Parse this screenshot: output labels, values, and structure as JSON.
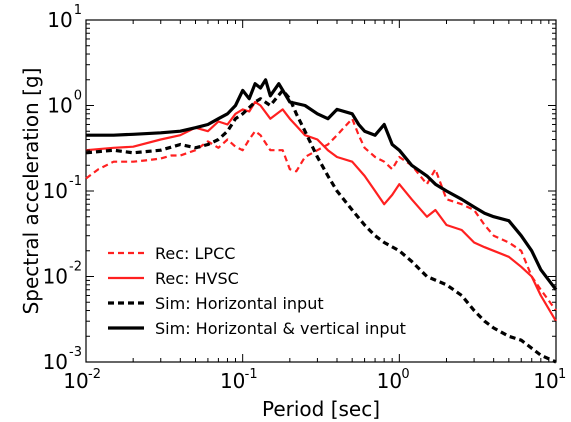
{
  "chart_data": {
    "type": "line",
    "xlabel": "Period [sec]",
    "ylabel": "Spectral acceleration [g]",
    "xscale": "log",
    "yscale": "log",
    "xlim": [
      0.01,
      10
    ],
    "ylim": [
      0.001,
      10
    ],
    "grid": false,
    "legend_position": "bottom-left",
    "x_ticks": [
      {
        "base": "10",
        "exp": "-2",
        "value": 0.01
      },
      {
        "base": "10",
        "exp": "-1",
        "value": 0.1
      },
      {
        "base": "10",
        "exp": "0",
        "value": 1
      },
      {
        "base": "10",
        "exp": "1",
        "value": 10
      }
    ],
    "y_ticks": [
      {
        "base": "10",
        "exp": "-3",
        "value": 0.001
      },
      {
        "base": "10",
        "exp": "-2",
        "value": 0.01
      },
      {
        "base": "10",
        "exp": "-1",
        "value": 0.1
      },
      {
        "base": "10",
        "exp": "0",
        "value": 1
      },
      {
        "base": "10",
        "exp": "1",
        "value": 10
      }
    ],
    "series": [
      {
        "name": "Rec: LPCC",
        "color": "#ff2020",
        "dash": "dashed",
        "width": 2.2,
        "points": [
          [
            0.01,
            0.14
          ],
          [
            0.012,
            0.18
          ],
          [
            0.015,
            0.22
          ],
          [
            0.02,
            0.22
          ],
          [
            0.025,
            0.23
          ],
          [
            0.03,
            0.24
          ],
          [
            0.035,
            0.26
          ],
          [
            0.04,
            0.26
          ],
          [
            0.05,
            0.3
          ],
          [
            0.06,
            0.38
          ],
          [
            0.07,
            0.32
          ],
          [
            0.08,
            0.4
          ],
          [
            0.09,
            0.33
          ],
          [
            0.1,
            0.3
          ],
          [
            0.11,
            0.4
          ],
          [
            0.12,
            0.5
          ],
          [
            0.13,
            0.45
          ],
          [
            0.15,
            0.3
          ],
          [
            0.18,
            0.3
          ],
          [
            0.2,
            0.18
          ],
          [
            0.22,
            0.17
          ],
          [
            0.25,
            0.25
          ],
          [
            0.3,
            0.3
          ],
          [
            0.35,
            0.35
          ],
          [
            0.4,
            0.45
          ],
          [
            0.5,
            0.7
          ],
          [
            0.55,
            0.45
          ],
          [
            0.6,
            0.32
          ],
          [
            0.7,
            0.25
          ],
          [
            0.8,
            0.22
          ],
          [
            0.9,
            0.18
          ],
          [
            1.0,
            0.25
          ],
          [
            1.2,
            0.2
          ],
          [
            1.5,
            0.12
          ],
          [
            1.7,
            0.18
          ],
          [
            2.0,
            0.08
          ],
          [
            2.5,
            0.07
          ],
          [
            3.0,
            0.06
          ],
          [
            3.5,
            0.04
          ],
          [
            4.0,
            0.03
          ],
          [
            5.0,
            0.025
          ],
          [
            6.0,
            0.02
          ],
          [
            7.0,
            0.01
          ],
          [
            8.0,
            0.007
          ],
          [
            10.0,
            0.004
          ]
        ]
      },
      {
        "name": "Rec: HVSC",
        "color": "#ff2020",
        "dash": "solid",
        "width": 2.2,
        "points": [
          [
            0.01,
            0.3
          ],
          [
            0.015,
            0.32
          ],
          [
            0.02,
            0.33
          ],
          [
            0.03,
            0.4
          ],
          [
            0.04,
            0.45
          ],
          [
            0.05,
            0.55
          ],
          [
            0.06,
            0.5
          ],
          [
            0.07,
            0.65
          ],
          [
            0.08,
            0.6
          ],
          [
            0.09,
            0.8
          ],
          [
            0.1,
            0.9
          ],
          [
            0.11,
            0.85
          ],
          [
            0.12,
            1.1
          ],
          [
            0.13,
            1.0
          ],
          [
            0.15,
            0.7
          ],
          [
            0.18,
            0.9
          ],
          [
            0.2,
            0.7
          ],
          [
            0.25,
            0.45
          ],
          [
            0.3,
            0.4
          ],
          [
            0.35,
            0.3
          ],
          [
            0.4,
            0.25
          ],
          [
            0.5,
            0.22
          ],
          [
            0.6,
            0.15
          ],
          [
            0.7,
            0.1
          ],
          [
            0.8,
            0.07
          ],
          [
            0.9,
            0.09
          ],
          [
            1.0,
            0.12
          ],
          [
            1.2,
            0.08
          ],
          [
            1.5,
            0.05
          ],
          [
            1.7,
            0.06
          ],
          [
            2.0,
            0.04
          ],
          [
            2.5,
            0.035
          ],
          [
            3.0,
            0.025
          ],
          [
            3.5,
            0.022
          ],
          [
            4.0,
            0.02
          ],
          [
            5.0,
            0.017
          ],
          [
            6.0,
            0.013
          ],
          [
            7.0,
            0.01
          ],
          [
            8.0,
            0.006
          ],
          [
            10.0,
            0.003
          ]
        ]
      },
      {
        "name": "Sim: Horizontal input",
        "color": "#000000",
        "dash": "dashed",
        "width": 3.2,
        "points": [
          [
            0.01,
            0.28
          ],
          [
            0.015,
            0.3
          ],
          [
            0.02,
            0.28
          ],
          [
            0.03,
            0.3
          ],
          [
            0.04,
            0.35
          ],
          [
            0.05,
            0.32
          ],
          [
            0.06,
            0.35
          ],
          [
            0.07,
            0.4
          ],
          [
            0.08,
            0.5
          ],
          [
            0.09,
            0.7
          ],
          [
            0.1,
            0.8
          ],
          [
            0.12,
            1.1
          ],
          [
            0.13,
            1.2
          ],
          [
            0.15,
            1.0
          ],
          [
            0.18,
            1.5
          ],
          [
            0.2,
            1.2
          ],
          [
            0.22,
            0.8
          ],
          [
            0.25,
            0.5
          ],
          [
            0.3,
            0.25
          ],
          [
            0.35,
            0.15
          ],
          [
            0.4,
            0.1
          ],
          [
            0.5,
            0.06
          ],
          [
            0.6,
            0.04
          ],
          [
            0.7,
            0.03
          ],
          [
            0.8,
            0.025
          ],
          [
            1.0,
            0.02
          ],
          [
            1.2,
            0.015
          ],
          [
            1.5,
            0.01
          ],
          [
            2.0,
            0.008
          ],
          [
            2.5,
            0.006
          ],
          [
            3.0,
            0.004
          ],
          [
            3.5,
            0.003
          ],
          [
            4.0,
            0.0025
          ],
          [
            5.0,
            0.002
          ],
          [
            6.0,
            0.0018
          ],
          [
            8.0,
            0.0012
          ],
          [
            10.0,
            0.001
          ]
        ]
      },
      {
        "name": "Sim: Horizontal & vertical input",
        "color": "#000000",
        "dash": "solid",
        "width": 3.2,
        "points": [
          [
            0.01,
            0.45
          ],
          [
            0.015,
            0.45
          ],
          [
            0.02,
            0.46
          ],
          [
            0.03,
            0.48
          ],
          [
            0.04,
            0.5
          ],
          [
            0.05,
            0.55
          ],
          [
            0.06,
            0.6
          ],
          [
            0.07,
            0.7
          ],
          [
            0.08,
            0.8
          ],
          [
            0.09,
            1.0
          ],
          [
            0.1,
            1.5
          ],
          [
            0.11,
            1.2
          ],
          [
            0.12,
            1.8
          ],
          [
            0.13,
            1.6
          ],
          [
            0.14,
            2.0
          ],
          [
            0.15,
            1.3
          ],
          [
            0.17,
            1.8
          ],
          [
            0.2,
            1.1
          ],
          [
            0.25,
            1.0
          ],
          [
            0.3,
            0.8
          ],
          [
            0.35,
            0.7
          ],
          [
            0.4,
            0.9
          ],
          [
            0.5,
            0.8
          ],
          [
            0.55,
            0.6
          ],
          [
            0.6,
            0.5
          ],
          [
            0.7,
            0.45
          ],
          [
            0.8,
            0.6
          ],
          [
            0.9,
            0.35
          ],
          [
            1.0,
            0.3
          ],
          [
            1.2,
            0.2
          ],
          [
            1.5,
            0.15
          ],
          [
            1.7,
            0.12
          ],
          [
            2.0,
            0.1
          ],
          [
            2.5,
            0.08
          ],
          [
            3.0,
            0.065
          ],
          [
            3.5,
            0.055
          ],
          [
            4.0,
            0.05
          ],
          [
            5.0,
            0.045
          ],
          [
            6.0,
            0.03
          ],
          [
            7.0,
            0.02
          ],
          [
            8.0,
            0.012
          ],
          [
            10.0,
            0.007
          ]
        ]
      }
    ]
  }
}
